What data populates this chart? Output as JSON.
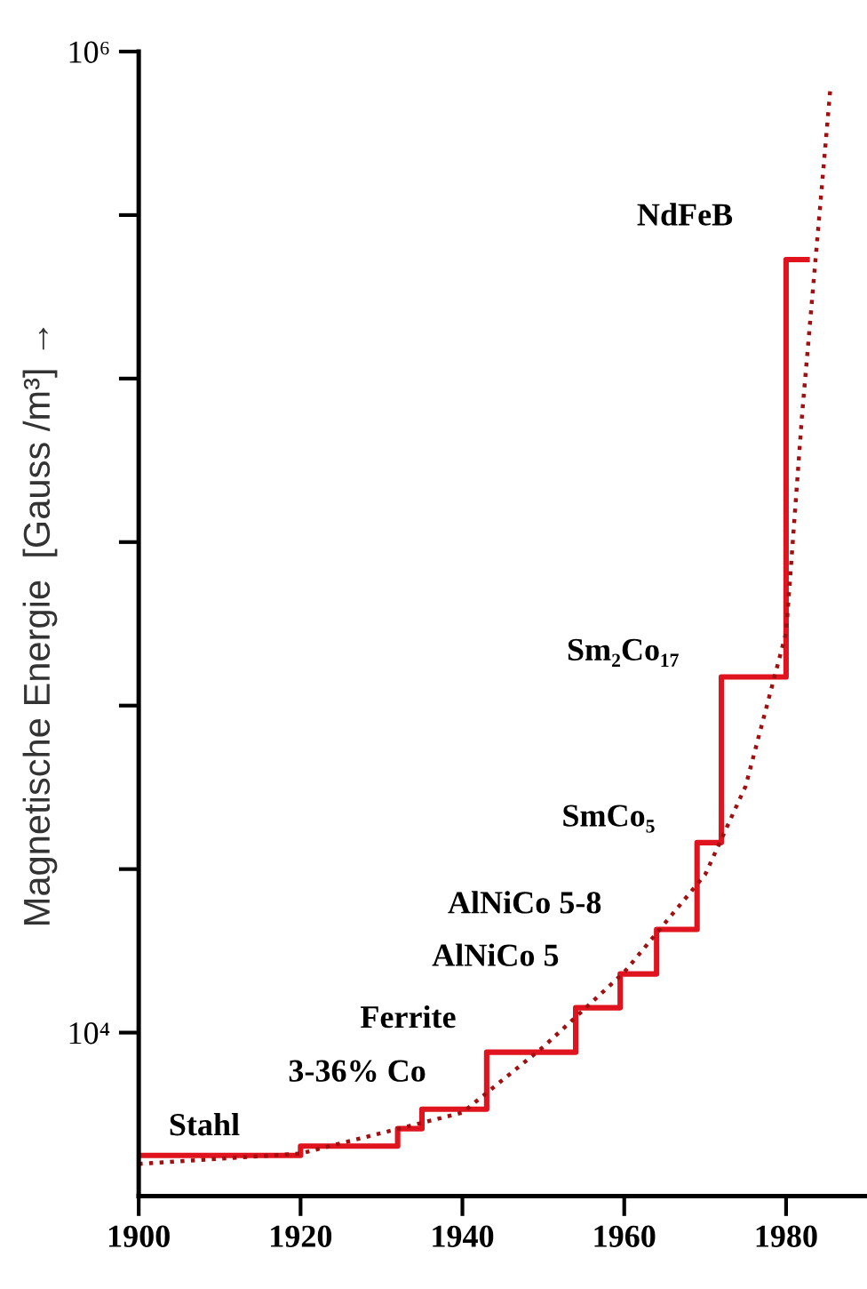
{
  "chart_data": {
    "type": "step",
    "ylabel": "Magnetische Energie  [Gauss /m³] →",
    "log": "y",
    "xlim": [
      1900,
      1990
    ],
    "xticks": [
      1900,
      1920,
      1940,
      1960,
      1980
    ],
    "ylim": [
      4640,
      1000000
    ],
    "yticks": [
      {
        "value": 10000,
        "label": "10⁴"
      },
      {
        "value": 21544,
        "label": null
      },
      {
        "value": 46416,
        "label": null
      },
      {
        "value": 100000,
        "label": null
      },
      {
        "value": 215443,
        "label": null
      },
      {
        "value": 464159,
        "label": null
      },
      {
        "value": 1000000,
        "label": "10⁶"
      }
    ],
    "grid": false,
    "legend": false,
    "series": [
      {
        "color": "#e0141e",
        "line_style": "solid",
        "x": [
          1900,
          1920,
          1932,
          1935,
          1943,
          1954,
          1959.5,
          1964,
          1969,
          1972,
          1980,
          1982.6
        ],
        "values": [
          5620,
          5870,
          6370,
          6980,
          9120,
          11240,
          13170,
          16230,
          24400,
          53100,
          376700,
          376700
        ]
      },
      {
        "type": "line",
        "color": "#a01010",
        "line_style": "dotted",
        "x": [
          1900,
          1920,
          1940,
          1950,
          1960,
          1970,
          1975,
          1980,
          1982,
          1985.5
        ],
        "values": [
          5400,
          5670,
          6870,
          9350,
          13280,
          21000,
          31800,
          65300,
          184000,
          851000
        ]
      }
    ],
    "annotations": [
      "Stahl",
      "3-36% Co",
      "Ferrite",
      "AlNiCo 5",
      "AlNiCo 5-8",
      "SmCo₅",
      "Sm₂Co₁₇",
      "NdFeB"
    ]
  }
}
